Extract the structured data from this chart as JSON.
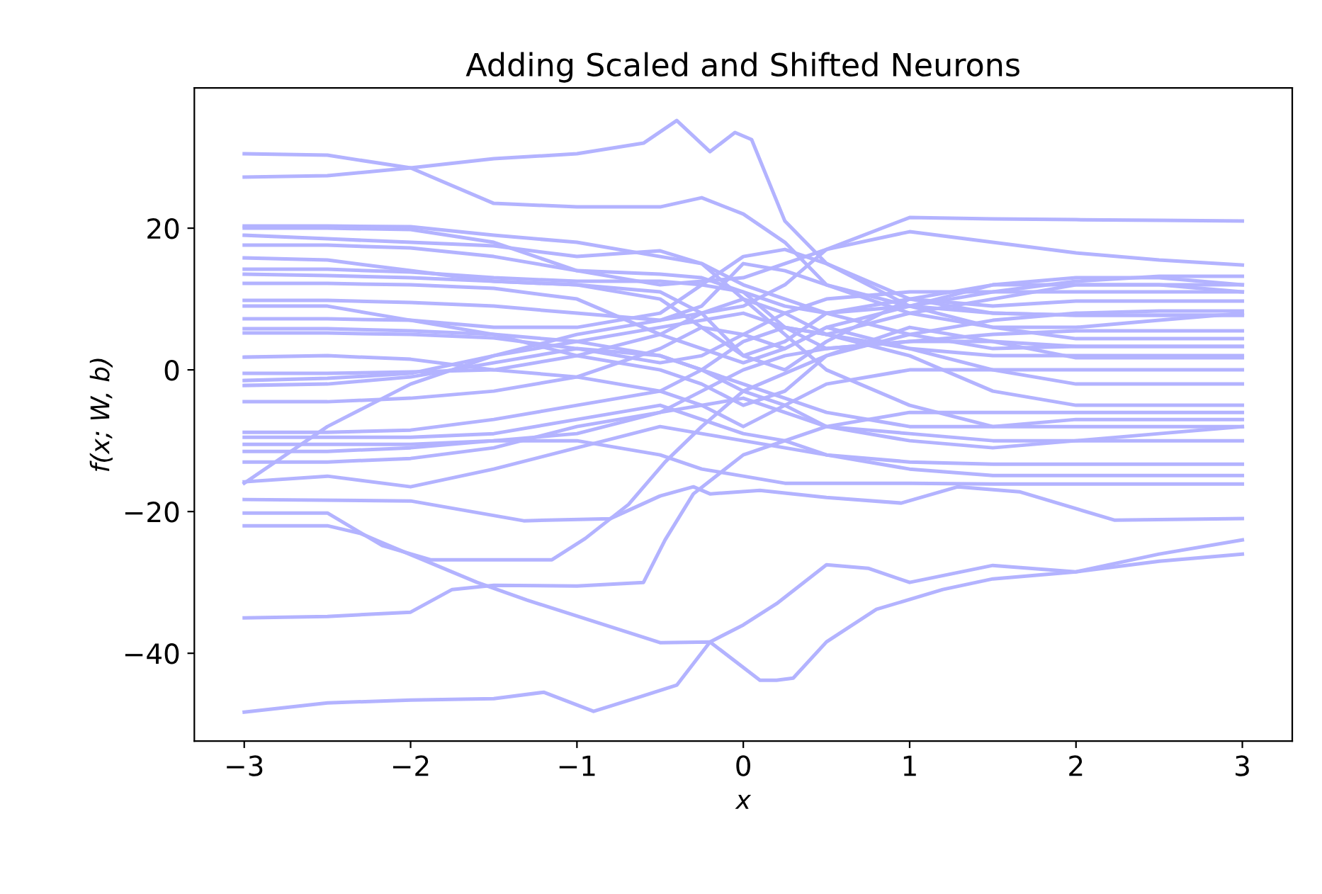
{
  "chart_data": {
    "type": "line",
    "title": "Adding Scaled and Shifted Neurons",
    "xlabel": "x",
    "ylabel": "f(x; W, b)",
    "x": [
      -3,
      -2.5,
      -2,
      -1.5,
      -1,
      -0.5,
      -0.25,
      0,
      0.25,
      0.5,
      1,
      1.5,
      2,
      2.5,
      3
    ],
    "xlim": [
      -3.3,
      3.3
    ],
    "ylim": [
      -52.4,
      39.8
    ],
    "xticks": [
      -3,
      -2,
      -1,
      0,
      1,
      2,
      3
    ],
    "yticks": [
      -40,
      -20,
      0,
      20
    ],
    "grid": false,
    "line_style": "solid",
    "series": [
      {
        "color": "#b3b3ff",
        "values": [
          30.5,
          30.3,
          28.5,
          23.5,
          23,
          23,
          24.3,
          22,
          18,
          12,
          9,
          8,
          7.7,
          7.7,
          7.7
        ]
      },
      {
        "color": "#b3b3ff",
        "x": [
          -3,
          -2.5,
          -2,
          -1.5,
          -1,
          -0.6,
          -0.4,
          -0.3,
          -0.2,
          -0.05,
          0.05,
          0.25,
          0.5,
          1,
          1.5,
          2,
          2.5,
          3
        ],
        "values": [
          27.2,
          27.4,
          28.5,
          29.8,
          30.5,
          32,
          35.2,
          33,
          30.8,
          33.5,
          32.5,
          21,
          15,
          9,
          6,
          6,
          7,
          8
        ]
      },
      {
        "color": "#b3b3ff",
        "values": [
          -1.5,
          -1.2,
          -0.5,
          2,
          5,
          7,
          8,
          9,
          12,
          17,
          21.5,
          21.3,
          21.2,
          21.1,
          21
        ]
      },
      {
        "color": "#b3b3ff",
        "values": [
          20,
          20,
          19.8,
          18,
          14,
          12,
          12.5,
          13,
          15,
          17,
          19.5,
          18,
          16.5,
          15.5,
          14.8
        ]
      },
      {
        "color": "#b3b3ff",
        "x": [
          -3,
          -2.5,
          -2,
          -1.5,
          -1.2,
          -0.9,
          -0.6,
          -0.4,
          -0.2,
          0,
          0.2,
          0.5,
          0.75,
          1,
          1.5,
          2,
          2.5,
          3
        ],
        "values": [
          -48.3,
          -47,
          -46.6,
          -46.4,
          -45.5,
          -48.2,
          -46,
          -44.5,
          -38.4,
          -36,
          -33,
          -27.5,
          -28,
          -30,
          -27.6,
          -28.5,
          -26,
          -24
        ]
      },
      {
        "color": "#b3b3ff",
        "x": [
          -3,
          -2.5,
          -2,
          -1.75,
          -1.5,
          -1,
          -0.6,
          -0.47,
          -0.3,
          0,
          0.5,
          1,
          1.5,
          2,
          2.5,
          3
        ],
        "values": [
          -35,
          -34.8,
          -34.2,
          -31,
          -30.4,
          -30.5,
          -30,
          -24,
          -17.5,
          -12,
          -8,
          -6,
          -6,
          -6,
          -6,
          -6
        ]
      },
      {
        "color": "#b3b3ff",
        "x": [
          -3,
          -2.5,
          -2.3,
          -2.1,
          -1.6,
          -1.3,
          -0.5,
          -0.2,
          0.1,
          0.2,
          0.3,
          0.5,
          0.8,
          1.2,
          1.5,
          2,
          2.5,
          3
        ],
        "values": [
          -22,
          -22,
          -23.1,
          -25.1,
          -30,
          -32.5,
          -38.5,
          -38.4,
          -43.8,
          -43.8,
          -43.5,
          -38.4,
          -33.8,
          -31,
          -29.5,
          -28.5,
          -27,
          -26
        ]
      },
      {
        "color": "#b3b3ff",
        "x": [
          -3,
          -2.5,
          -2.17,
          -1.88,
          -1.15,
          -0.95,
          -0.69,
          -0.47,
          -0.25,
          0,
          0.5,
          1,
          1.5,
          2,
          2.5,
          3
        ],
        "values": [
          -20.2,
          -20.2,
          -24.8,
          -26.8,
          -26.8,
          -23.8,
          -19,
          -13,
          -8,
          -3,
          2,
          5,
          7,
          8,
          8.3,
          8.3
        ]
      },
      {
        "color": "#b3b3ff",
        "x": [
          -3,
          -2,
          -1.32,
          -0.8,
          -0.5,
          -0.3,
          -0.2,
          0.1,
          0.5,
          0.95,
          1.29,
          1.66,
          2.23,
          3
        ],
        "values": [
          -18.3,
          -18.5,
          -21.3,
          -21,
          -17.8,
          -16.5,
          -17.5,
          -17,
          -18,
          -18.8,
          -16.5,
          -17.2,
          -21.2,
          -21
        ]
      },
      {
        "color": "#b3b3ff",
        "values": [
          -16,
          -8,
          -2,
          2,
          4,
          6,
          7,
          8,
          6,
          5,
          8,
          10,
          12,
          12,
          11
        ]
      },
      {
        "color": "#b3b3ff",
        "values": [
          -15.8,
          -15,
          -16.5,
          -14,
          -11,
          -8,
          -9,
          -10,
          -11,
          -12,
          -13,
          -13.3,
          -13.3,
          -13.3,
          -13.3
        ]
      },
      {
        "color": "#b3b3ff",
        "values": [
          20.3,
          20.3,
          20.2,
          19,
          18,
          16,
          15,
          12,
          10,
          8,
          5,
          3,
          3.3,
          3.3,
          3.3
        ]
      },
      {
        "color": "#b3b3ff",
        "values": [
          19,
          18.5,
          18,
          17.5,
          16,
          16.8,
          15,
          10,
          5,
          0,
          -5,
          -8,
          -7,
          -7,
          -7
        ]
      },
      {
        "color": "#b3b3ff",
        "values": [
          17.6,
          17.6,
          17.2,
          16,
          14,
          13.5,
          13,
          11,
          6,
          3,
          4,
          5,
          5.5,
          5.5,
          5.5
        ]
      },
      {
        "color": "#b3b3ff",
        "values": [
          15.8,
          15.5,
          14,
          12.5,
          12,
          11,
          8,
          2,
          0,
          4,
          10,
          12,
          12,
          12,
          12
        ]
      },
      {
        "color": "#b3b3ff",
        "values": [
          14.2,
          14.2,
          13.8,
          13,
          12.5,
          12.5,
          12,
          11,
          9,
          8,
          9,
          11,
          12.5,
          13.2,
          13.2
        ]
      },
      {
        "color": "#b3b3ff",
        "values": [
          13.5,
          13.3,
          13,
          12.5,
          12,
          10,
          6,
          2,
          4,
          8,
          10,
          9,
          9.7,
          9.7,
          9.7
        ]
      },
      {
        "color": "#b3b3ff",
        "values": [
          12.2,
          12.2,
          12,
          11.5,
          10,
          5,
          3,
          1,
          3,
          6,
          3,
          0,
          -2,
          -2,
          -2
        ]
      },
      {
        "color": "#b3b3ff",
        "values": [
          9.8,
          9.8,
          9.5,
          9,
          8,
          7,
          9,
          15,
          14,
          12,
          8,
          6,
          4.4,
          4.4,
          4.4
        ]
      },
      {
        "color": "#b3b3ff",
        "values": [
          9,
          9,
          7,
          5,
          2,
          0,
          -2,
          -5,
          -3,
          2,
          6,
          4,
          1.7,
          1.7,
          1.7
        ]
      },
      {
        "color": "#b3b3ff",
        "values": [
          7.2,
          7.2,
          7,
          6,
          6,
          8,
          12,
          16,
          17,
          15,
          10,
          8,
          7.7,
          7.7,
          7.7
        ]
      },
      {
        "color": "#b3b3ff",
        "values": [
          5.8,
          5.8,
          5.5,
          5,
          4,
          2,
          0,
          -3,
          -5,
          -8,
          -9,
          -10,
          -10,
          -10,
          -10
        ]
      },
      {
        "color": "#b3b3ff",
        "values": [
          5.2,
          5.2,
          5,
          4.5,
          3,
          1,
          2,
          5,
          8,
          10,
          11,
          11,
          11,
          11,
          11
        ]
      },
      {
        "color": "#b3b3ff",
        "values": [
          1.8,
          2,
          1.5,
          0,
          -1,
          -3,
          -5,
          -8,
          -5,
          -2,
          0,
          0,
          0,
          0,
          0
        ]
      },
      {
        "color": "#b3b3ff",
        "values": [
          -0.5,
          -0.5,
          -0.3,
          0,
          2,
          5,
          8,
          10,
          8,
          5,
          2,
          -3,
          -5,
          -5,
          -5
        ]
      },
      {
        "color": "#b3b3ff",
        "values": [
          -2.2,
          -2,
          -1,
          1,
          3,
          2,
          0,
          -2,
          -4,
          -6,
          -8,
          -8,
          -8,
          -8,
          -8
        ]
      },
      {
        "color": "#b3b3ff",
        "values": [
          -4.5,
          -4.5,
          -4,
          -3,
          -1,
          3,
          6,
          5,
          3,
          6,
          9,
          12,
          13,
          13,
          12
        ]
      },
      {
        "color": "#b3b3ff",
        "values": [
          -8.8,
          -8.8,
          -8.5,
          -7,
          -5,
          -3,
          0,
          4,
          6,
          5,
          3,
          2,
          2,
          2,
          2
        ]
      },
      {
        "color": "#b3b3ff",
        "values": [
          -9.5,
          -9.5,
          -9.5,
          -9,
          -7,
          -5,
          -7,
          -9,
          -10,
          -12,
          -14,
          -14.9,
          -14.9,
          -14.9,
          -14.9
        ]
      },
      {
        "color": "#b3b3ff",
        "values": [
          -10.5,
          -10.5,
          -10.5,
          -10,
          -9,
          -6,
          -3,
          0,
          2,
          3,
          4,
          4,
          3.3,
          3.3,
          3.3
        ]
      },
      {
        "color": "#b3b3ff",
        "values": [
          -11.5,
          -11.5,
          -11,
          -10,
          -10,
          -12,
          -14,
          -15,
          -16,
          -16,
          -16,
          -16.1,
          -16.1,
          -16.1,
          -16.1
        ]
      },
      {
        "color": "#b3b3ff",
        "values": [
          -13,
          -13,
          -12.5,
          -11,
          -8,
          -6,
          -5,
          -4,
          -6,
          -8,
          -10,
          -11,
          -10,
          -9,
          -8
        ]
      }
    ]
  }
}
